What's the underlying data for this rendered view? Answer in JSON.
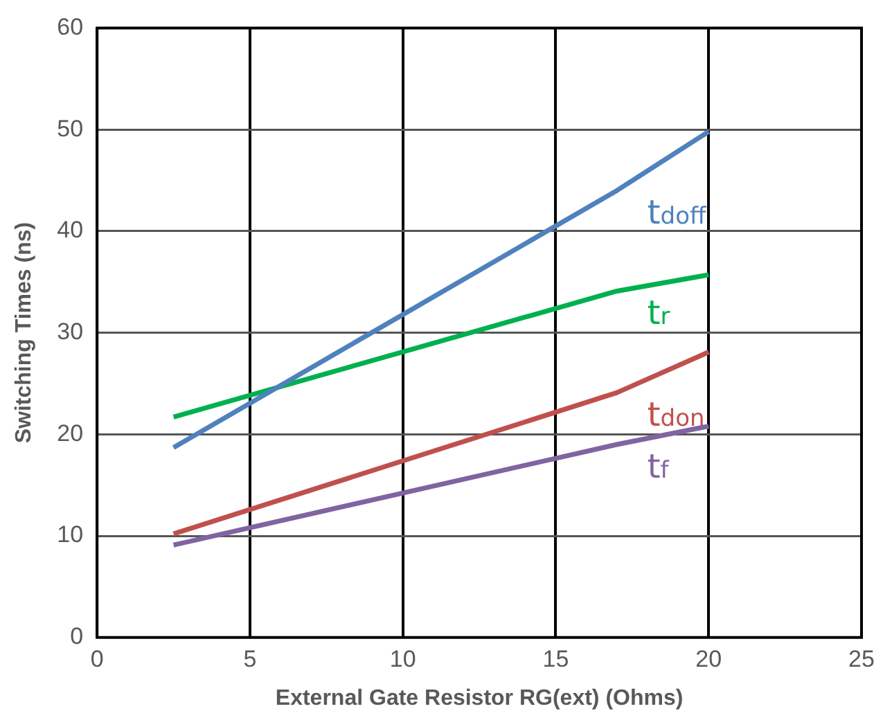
{
  "chart_data": {
    "type": "line",
    "xlabel": "External Gate Resistor RG(ext) (Ohms)",
    "ylabel": "Switching Times (ns)",
    "xlim": [
      0,
      25
    ],
    "xticks": [
      0,
      5,
      10,
      15,
      20,
      25
    ],
    "ylim": [
      0,
      60
    ],
    "yticks": [
      0,
      10,
      20,
      30,
      40,
      50,
      60
    ],
    "x": [
      2.5,
      17,
      20
    ],
    "grid": true,
    "legend": false,
    "marker": "none",
    "line_style": "solid",
    "series": [
      {
        "name": "t$_{doff}$",
        "color": "#4f81bd",
        "values": [
          18.7,
          44,
          49.8
        ]
      },
      {
        "name": "t$_{r}$",
        "color": "#00b050",
        "values": [
          21.7,
          34.1,
          35.7
        ]
      },
      {
        "name": "t$_{don}$",
        "color": "#c0504d",
        "values": [
          10.2,
          24.1,
          28.1
        ]
      },
      {
        "name": "t$_{f}$",
        "color": "#8064a2",
        "values": [
          9.1,
          19.0,
          20.8
        ]
      }
    ]
  }
}
